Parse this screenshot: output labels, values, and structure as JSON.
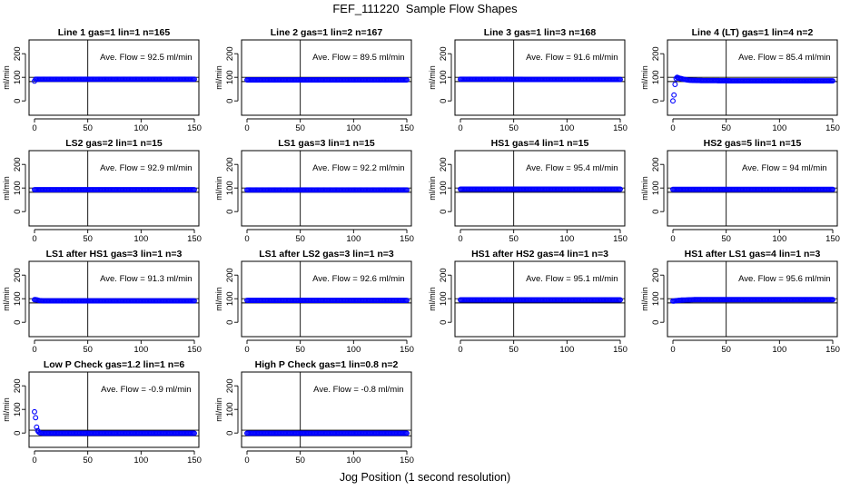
{
  "figure": {
    "title": "FEF_111220  Sample Flow Shapes",
    "xlabel": "Jog Position (1 second resolution)"
  },
  "chart_data": [
    {
      "type": "scatter",
      "title": "Line 1 gas=1 lin=1 n=165",
      "annotation": "Ave. Flow =  92.5  ml/min",
      "ylabel": "ml/min",
      "xlim": [
        0,
        150
      ],
      "ylim": [
        -30,
        220
      ],
      "xticks": [
        0,
        50,
        100,
        150
      ],
      "yticks": [
        0,
        100,
        200
      ],
      "hlines": [
        82,
        100
      ],
      "vline": 50,
      "grid": false,
      "series": [
        {
          "marker": "open-circle",
          "color": "#0000ff",
          "x": [
            0,
            1,
            2,
            3,
            5,
            10,
            20,
            40,
            60,
            80,
            100,
            120,
            140,
            150
          ],
          "y": [
            84,
            92,
            92,
            92,
            92,
            92,
            92,
            92,
            92,
            92,
            92,
            92,
            92,
            92
          ]
        }
      ]
    },
    {
      "type": "scatter",
      "title": "Line 2 gas=1 lin=2 n=167",
      "annotation": "Ave. Flow =  89.5  ml/min",
      "ylabel": "ml/min",
      "xlim": [
        0,
        150
      ],
      "ylim": [
        -30,
        220
      ],
      "xticks": [
        0,
        50,
        100,
        150
      ],
      "yticks": [
        0,
        100,
        200
      ],
      "hlines": [
        82,
        100
      ],
      "vline": 50,
      "grid": false,
      "series": [
        {
          "marker": "open-circle",
          "color": "#0000ff",
          "x": [
            0,
            1,
            2,
            3,
            5,
            10,
            20,
            40,
            60,
            80,
            100,
            120,
            140,
            150
          ],
          "y": [
            89,
            89,
            89,
            89,
            89,
            89,
            89,
            89,
            89,
            89,
            89,
            89,
            89,
            89
          ]
        }
      ]
    },
    {
      "type": "scatter",
      "title": "Line 3 gas=1 lin=3 n=168",
      "annotation": "Ave. Flow =  91.6  ml/min",
      "ylabel": "ml/min",
      "xlim": [
        0,
        150
      ],
      "ylim": [
        -30,
        220
      ],
      "xticks": [
        0,
        50,
        100,
        150
      ],
      "yticks": [
        0,
        100,
        200
      ],
      "hlines": [
        82,
        100
      ],
      "vline": 50,
      "grid": false,
      "series": [
        {
          "marker": "open-circle",
          "color": "#0000ff",
          "x": [
            0,
            1,
            2,
            3,
            5,
            10,
            20,
            40,
            60,
            80,
            100,
            120,
            140,
            150
          ],
          "y": [
            92,
            92,
            92,
            92,
            92,
            92,
            92,
            92,
            91,
            91,
            91,
            91,
            91,
            91
          ]
        }
      ]
    },
    {
      "type": "scatter",
      "title": "Line 4 (LT) gas=1 lin=4 n=2",
      "annotation": "Ave. Flow =  85.4  ml/min",
      "ylabel": "ml/min",
      "xlim": [
        0,
        150
      ],
      "ylim": [
        -30,
        220
      ],
      "xticks": [
        0,
        50,
        100,
        150
      ],
      "yticks": [
        0,
        100,
        200
      ],
      "hlines": [
        82,
        100
      ],
      "vline": 50,
      "grid": false,
      "series": [
        {
          "marker": "open-circle",
          "color": "#0000ff",
          "x": [
            0,
            1,
            2,
            3,
            4,
            5,
            6,
            8,
            10,
            12,
            15,
            20,
            30,
            40,
            60,
            80,
            100,
            120,
            140,
            150
          ],
          "y": [
            0,
            25,
            70,
            95,
            100,
            98,
            96,
            94,
            92,
            90,
            88,
            87,
            86,
            86,
            85,
            85,
            85,
            85,
            85,
            85
          ]
        }
      ]
    },
    {
      "type": "scatter",
      "title": "LS2 gas=2 lin=1 n=15",
      "annotation": "Ave. Flow =  92.9  ml/min",
      "ylabel": "ml/min",
      "xlim": [
        0,
        150
      ],
      "ylim": [
        -30,
        220
      ],
      "xticks": [
        0,
        50,
        100,
        150
      ],
      "yticks": [
        0,
        100,
        200
      ],
      "hlines": [
        82,
        100
      ],
      "vline": 50,
      "grid": false,
      "series": [
        {
          "marker": "open-circle",
          "color": "#0000ff",
          "x": [
            0,
            1,
            2,
            3,
            5,
            10,
            20,
            40,
            60,
            80,
            100,
            120,
            140,
            150
          ],
          "y": [
            93,
            93,
            93,
            93,
            93,
            93,
            93,
            93,
            93,
            93,
            93,
            93,
            93,
            93
          ]
        }
      ]
    },
    {
      "type": "scatter",
      "title": "LS1 gas=3 lin=1 n=15",
      "annotation": "Ave. Flow =  92.2  ml/min",
      "ylabel": "ml/min",
      "xlim": [
        0,
        150
      ],
      "ylim": [
        -30,
        220
      ],
      "xticks": [
        0,
        50,
        100,
        150
      ],
      "yticks": [
        0,
        100,
        200
      ],
      "hlines": [
        82,
        100
      ],
      "vline": 50,
      "grid": false,
      "series": [
        {
          "marker": "open-circle",
          "color": "#0000ff",
          "x": [
            0,
            1,
            2,
            3,
            5,
            10,
            20,
            40,
            60,
            80,
            100,
            120,
            140,
            150
          ],
          "y": [
            92,
            92,
            92,
            92,
            92,
            92,
            92,
            92,
            92,
            92,
            92,
            92,
            92,
            92
          ]
        }
      ]
    },
    {
      "type": "scatter",
      "title": "HS1 gas=4 lin=1 n=15",
      "annotation": "Ave. Flow =  95.4  ml/min",
      "ylabel": "ml/min",
      "xlim": [
        0,
        150
      ],
      "ylim": [
        -30,
        220
      ],
      "xticks": [
        0,
        50,
        100,
        150
      ],
      "yticks": [
        0,
        100,
        200
      ],
      "hlines": [
        82,
        100
      ],
      "vline": 50,
      "grid": false,
      "series": [
        {
          "marker": "open-circle",
          "color": "#0000ff",
          "x": [
            0,
            1,
            2,
            3,
            5,
            10,
            20,
            40,
            60,
            80,
            100,
            120,
            140,
            150
          ],
          "y": [
            95,
            95,
            95,
            95,
            95,
            95,
            95,
            95,
            95,
            95,
            95,
            95,
            95,
            95
          ]
        }
      ]
    },
    {
      "type": "scatter",
      "title": "HS2 gas=5 lin=1 n=15",
      "annotation": "Ave. Flow =  94  ml/min",
      "ylabel": "ml/min",
      "xlim": [
        0,
        150
      ],
      "ylim": [
        -30,
        220
      ],
      "xticks": [
        0,
        50,
        100,
        150
      ],
      "yticks": [
        0,
        100,
        200
      ],
      "hlines": [
        82,
        100
      ],
      "vline": 50,
      "grid": false,
      "series": [
        {
          "marker": "open-circle",
          "color": "#0000ff",
          "x": [
            0,
            1,
            2,
            3,
            5,
            10,
            20,
            40,
            60,
            80,
            100,
            120,
            140,
            150
          ],
          "y": [
            94,
            94,
            94,
            94,
            94,
            94,
            94,
            94,
            94,
            94,
            94,
            94,
            94,
            94
          ]
        }
      ]
    },
    {
      "type": "scatter",
      "title": "LS1 after HS1 gas=3 lin=1 n=3",
      "annotation": "Ave. Flow =  91.3  ml/min",
      "ylabel": "ml/min",
      "xlim": [
        0,
        150
      ],
      "ylim": [
        -30,
        220
      ],
      "xticks": [
        0,
        50,
        100,
        150
      ],
      "yticks": [
        0,
        100,
        200
      ],
      "hlines": [
        82,
        100
      ],
      "vline": 50,
      "grid": false,
      "series": [
        {
          "marker": "open-circle",
          "color": "#0000ff",
          "x": [
            0,
            1,
            2,
            3,
            4,
            5,
            6,
            8,
            10,
            15,
            20,
            40,
            60,
            80,
            100,
            120,
            140,
            150
          ],
          "y": [
            96,
            96,
            95,
            94,
            93,
            92,
            92,
            91,
            91,
            91,
            91,
            91,
            91,
            91,
            91,
            91,
            91,
            91
          ]
        }
      ]
    },
    {
      "type": "scatter",
      "title": "LS1 after LS2 gas=3 lin=1 n=3",
      "annotation": "Ave. Flow =  92.6  ml/min",
      "ylabel": "ml/min",
      "xlim": [
        0,
        150
      ],
      "ylim": [
        -30,
        220
      ],
      "xticks": [
        0,
        50,
        100,
        150
      ],
      "yticks": [
        0,
        100,
        200
      ],
      "hlines": [
        82,
        100
      ],
      "vline": 50,
      "grid": false,
      "series": [
        {
          "marker": "open-circle",
          "color": "#0000ff",
          "x": [
            0,
            1,
            2,
            3,
            5,
            10,
            20,
            40,
            60,
            80,
            100,
            120,
            140,
            150
          ],
          "y": [
            93,
            93,
            93,
            93,
            93,
            93,
            93,
            93,
            93,
            93,
            93,
            93,
            93,
            93
          ]
        }
      ]
    },
    {
      "type": "scatter",
      "title": "HS1 after HS2 gas=4 lin=1 n=3",
      "annotation": "Ave. Flow =  95.1  ml/min",
      "ylabel": "ml/min",
      "xlim": [
        0,
        150
      ],
      "ylim": [
        -30,
        220
      ],
      "xticks": [
        0,
        50,
        100,
        150
      ],
      "yticks": [
        0,
        100,
        200
      ],
      "hlines": [
        82,
        100
      ],
      "vline": 50,
      "grid": false,
      "series": [
        {
          "marker": "open-circle",
          "color": "#0000ff",
          "x": [
            0,
            1,
            2,
            3,
            5,
            10,
            20,
            40,
            60,
            80,
            100,
            120,
            140,
            150
          ],
          "y": [
            95,
            95,
            95,
            95,
            95,
            95,
            95,
            95,
            95,
            95,
            95,
            95,
            95,
            95
          ]
        }
      ]
    },
    {
      "type": "scatter",
      "title": "HS1 after LS1 gas=4 lin=1 n=3",
      "annotation": "Ave. Flow =  95.6  ml/min",
      "ylabel": "ml/min",
      "xlim": [
        0,
        150
      ],
      "ylim": [
        -30,
        220
      ],
      "xticks": [
        0,
        50,
        100,
        150
      ],
      "yticks": [
        0,
        100,
        200
      ],
      "hlines": [
        82,
        100
      ],
      "vline": 50,
      "grid": false,
      "series": [
        {
          "marker": "open-circle",
          "color": "#0000ff",
          "x": [
            0,
            1,
            2,
            3,
            4,
            5,
            6,
            8,
            10,
            15,
            20,
            30,
            40,
            60,
            80,
            100,
            120,
            140,
            150
          ],
          "y": [
            90,
            90,
            91,
            92,
            92,
            93,
            93,
            94,
            94,
            95,
            96,
            96,
            96,
            96,
            96,
            96,
            96,
            96,
            96
          ]
        }
      ]
    },
    {
      "type": "scatter",
      "title": "Low P Check gas=1.2 lin=1 n=6",
      "annotation": "Ave. Flow =  -0.9  ml/min",
      "ylabel": "ml/min",
      "xlim": [
        0,
        150
      ],
      "ylim": [
        -30,
        220
      ],
      "xticks": [
        0,
        50,
        100,
        150
      ],
      "yticks": [
        0,
        100,
        200
      ],
      "hlines": [
        -12,
        12
      ],
      "vline": 50,
      "grid": false,
      "series": [
        {
          "marker": "open-circle",
          "color": "#0000ff",
          "x": [
            0,
            1,
            2,
            3,
            4,
            5,
            6,
            8,
            10,
            15,
            20,
            40,
            60,
            80,
            100,
            120,
            140,
            150
          ],
          "y": [
            90,
            65,
            25,
            10,
            4,
            1,
            0,
            -1,
            -1,
            -1,
            -1,
            -1,
            -1,
            -1,
            -1,
            -1,
            -1,
            -1
          ]
        }
      ]
    },
    {
      "type": "scatter",
      "title": "High P Check gas=1 lin=0.8 n=2",
      "annotation": "Ave. Flow =  -0.8  ml/min",
      "ylabel": "ml/min",
      "xlim": [
        0,
        150
      ],
      "ylim": [
        -30,
        220
      ],
      "xticks": [
        0,
        50,
        100,
        150
      ],
      "yticks": [
        0,
        100,
        200
      ],
      "hlines": [
        -12,
        12
      ],
      "vline": 50,
      "grid": false,
      "series": [
        {
          "marker": "open-circle",
          "color": "#0000ff",
          "x": [
            0,
            1,
            2,
            3,
            5,
            10,
            20,
            40,
            60,
            80,
            100,
            120,
            140,
            150
          ],
          "y": [
            -1,
            -1,
            -1,
            -1,
            -1,
            -1,
            -1,
            -1,
            -1,
            -1,
            -1,
            -1,
            -1,
            -1
          ]
        }
      ]
    }
  ]
}
